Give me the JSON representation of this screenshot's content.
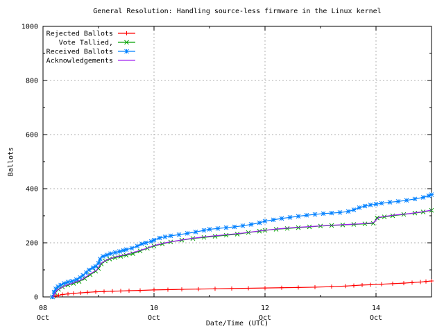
{
  "chart_data": {
    "type": "line",
    "title": "General Resolution: Handling source-less firmware in the Linux kernel",
    "xlabel": "Date/Time (UTC)",
    "ylabel": "Ballots",
    "xlim": [
      8,
      15
    ],
    "ylim": [
      0,
      1000
    ],
    "x_axis_unit": "day of October (UTC)",
    "grid": true,
    "grid_color": "#b0b0b0",
    "legend_position": "top-left",
    "x_major_ticks": [
      {
        "day": 8,
        "line1": "08",
        "line2": "Oct"
      },
      {
        "day": 10,
        "line1": "10",
        "line2": "Oct"
      },
      {
        "day": 12,
        "line1": "12",
        "line2": "Oct"
      },
      {
        "day": 14,
        "line1": "14",
        "line2": "Oct"
      }
    ],
    "x_minor_tick_days": [
      9,
      11,
      13
    ],
    "y_major_ticks": [
      0,
      200,
      400,
      600,
      800,
      1000
    ],
    "y_minor_ticks": [
      100,
      300,
      500,
      700,
      900
    ],
    "series": [
      {
        "name": "Rejected Ballots",
        "color": "#ff0000",
        "marker": "plus",
        "points": [
          [
            8.17,
            0
          ],
          [
            8.22,
            3
          ],
          [
            8.28,
            6
          ],
          [
            8.35,
            9
          ],
          [
            8.45,
            11
          ],
          [
            8.55,
            13
          ],
          [
            8.68,
            15
          ],
          [
            8.8,
            17
          ],
          [
            8.95,
            19
          ],
          [
            9.1,
            20
          ],
          [
            9.25,
            21
          ],
          [
            9.4,
            22
          ],
          [
            9.55,
            23
          ],
          [
            9.75,
            24
          ],
          [
            10.0,
            26
          ],
          [
            10.25,
            27
          ],
          [
            10.5,
            28
          ],
          [
            10.8,
            29
          ],
          [
            11.1,
            30
          ],
          [
            11.4,
            31
          ],
          [
            11.7,
            32
          ],
          [
            12.0,
            33
          ],
          [
            12.3,
            34
          ],
          [
            12.6,
            35
          ],
          [
            12.9,
            36
          ],
          [
            13.2,
            38
          ],
          [
            13.45,
            40
          ],
          [
            13.6,
            42
          ],
          [
            13.75,
            44
          ],
          [
            13.9,
            45
          ],
          [
            14.1,
            47
          ],
          [
            14.3,
            49
          ],
          [
            14.5,
            51
          ],
          [
            14.65,
            53
          ],
          [
            14.8,
            55
          ],
          [
            14.9,
            57
          ],
          [
            15.0,
            59
          ]
        ]
      },
      {
        "name": "Vote Tallied,",
        "color": "#00a000",
        "marker": "cross",
        "points": [
          [
            8.17,
            0
          ],
          [
            8.22,
            15
          ],
          [
            8.28,
            28
          ],
          [
            8.35,
            37
          ],
          [
            8.45,
            44
          ],
          [
            8.55,
            50
          ],
          [
            8.65,
            57
          ],
          [
            8.75,
            68
          ],
          [
            8.85,
            82
          ],
          [
            8.95,
            95
          ],
          [
            9.0,
            105
          ],
          [
            9.05,
            122
          ],
          [
            9.12,
            133
          ],
          [
            9.2,
            140
          ],
          [
            9.3,
            145
          ],
          [
            9.4,
            150
          ],
          [
            9.5,
            154
          ],
          [
            9.62,
            160
          ],
          [
            9.75,
            170
          ],
          [
            9.88,
            180
          ],
          [
            10.0,
            188
          ],
          [
            10.15,
            196
          ],
          [
            10.3,
            203
          ],
          [
            10.5,
            210
          ],
          [
            10.7,
            216
          ],
          [
            10.9,
            220
          ],
          [
            11.1,
            224
          ],
          [
            11.3,
            228
          ],
          [
            11.5,
            232
          ],
          [
            11.7,
            238
          ],
          [
            11.9,
            243
          ],
          [
            12.0,
            246
          ],
          [
            12.2,
            250
          ],
          [
            12.4,
            253
          ],
          [
            12.6,
            256
          ],
          [
            12.8,
            259
          ],
          [
            13.0,
            262
          ],
          [
            13.2,
            264
          ],
          [
            13.4,
            266
          ],
          [
            13.6,
            268
          ],
          [
            13.8,
            270
          ],
          [
            13.95,
            272
          ],
          [
            14.02,
            292
          ],
          [
            14.15,
            296
          ],
          [
            14.3,
            300
          ],
          [
            14.5,
            305
          ],
          [
            14.7,
            310
          ],
          [
            14.85,
            314
          ],
          [
            15.0,
            320
          ]
        ]
      },
      {
        "name": "Received Ballots",
        "color": "#0080ff",
        "marker": "star",
        "points": [
          [
            8.17,
            0
          ],
          [
            8.2,
            18
          ],
          [
            8.23,
            30
          ],
          [
            8.27,
            38
          ],
          [
            8.32,
            44
          ],
          [
            8.38,
            50
          ],
          [
            8.45,
            55
          ],
          [
            8.52,
            58
          ],
          [
            8.6,
            64
          ],
          [
            8.67,
            72
          ],
          [
            8.72,
            80
          ],
          [
            8.78,
            90
          ],
          [
            8.83,
            100
          ],
          [
            8.9,
            108
          ],
          [
            8.95,
            113
          ],
          [
            9.0,
            125
          ],
          [
            9.03,
            140
          ],
          [
            9.08,
            150
          ],
          [
            9.15,
            155
          ],
          [
            9.22,
            160
          ],
          [
            9.3,
            164
          ],
          [
            9.38,
            168
          ],
          [
            9.45,
            172
          ],
          [
            9.5,
            175
          ],
          [
            9.6,
            180
          ],
          [
            9.7,
            188
          ],
          [
            9.78,
            196
          ],
          [
            9.85,
            200
          ],
          [
            9.95,
            205
          ],
          [
            10.0,
            210
          ],
          [
            10.1,
            218
          ],
          [
            10.2,
            222
          ],
          [
            10.3,
            226
          ],
          [
            10.45,
            230
          ],
          [
            10.6,
            235
          ],
          [
            10.75,
            240
          ],
          [
            10.9,
            246
          ],
          [
            11.0,
            250
          ],
          [
            11.15,
            253
          ],
          [
            11.3,
            256
          ],
          [
            11.45,
            259
          ],
          [
            11.6,
            263
          ],
          [
            11.75,
            268
          ],
          [
            11.9,
            274
          ],
          [
            12.0,
            280
          ],
          [
            12.15,
            285
          ],
          [
            12.3,
            290
          ],
          [
            12.45,
            294
          ],
          [
            12.6,
            298
          ],
          [
            12.75,
            302
          ],
          [
            12.9,
            305
          ],
          [
            13.05,
            308
          ],
          [
            13.2,
            310
          ],
          [
            13.35,
            312
          ],
          [
            13.5,
            316
          ],
          [
            13.6,
            322
          ],
          [
            13.7,
            330
          ],
          [
            13.8,
            336
          ],
          [
            13.9,
            340
          ],
          [
            14.0,
            343
          ],
          [
            14.1,
            346
          ],
          [
            14.25,
            350
          ],
          [
            14.4,
            353
          ],
          [
            14.55,
            357
          ],
          [
            14.7,
            362
          ],
          [
            14.85,
            368
          ],
          [
            14.95,
            374
          ],
          [
            15.0,
            378
          ]
        ]
      },
      {
        "name": "Acknowledgements",
        "color": "#a020f0",
        "marker": "none",
        "points": [
          [
            8.17,
            0
          ],
          [
            8.25,
            25
          ],
          [
            8.4,
            42
          ],
          [
            8.55,
            52
          ],
          [
            8.7,
            64
          ],
          [
            8.85,
            85
          ],
          [
            8.97,
            100
          ],
          [
            9.05,
            125
          ],
          [
            9.15,
            137
          ],
          [
            9.3,
            148
          ],
          [
            9.5,
            157
          ],
          [
            9.7,
            169
          ],
          [
            9.9,
            182
          ],
          [
            10.0,
            190
          ],
          [
            10.2,
            200
          ],
          [
            10.45,
            209
          ],
          [
            10.7,
            217
          ],
          [
            11.0,
            224
          ],
          [
            11.3,
            230
          ],
          [
            11.6,
            236
          ],
          [
            11.9,
            244
          ],
          [
            12.2,
            251
          ],
          [
            12.5,
            256
          ],
          [
            12.8,
            260
          ],
          [
            13.1,
            264
          ],
          [
            13.4,
            267
          ],
          [
            13.7,
            270
          ],
          [
            13.95,
            274
          ],
          [
            14.05,
            294
          ],
          [
            14.3,
            302
          ],
          [
            14.6,
            308
          ],
          [
            14.85,
            315
          ],
          [
            15.0,
            321
          ]
        ]
      }
    ]
  }
}
